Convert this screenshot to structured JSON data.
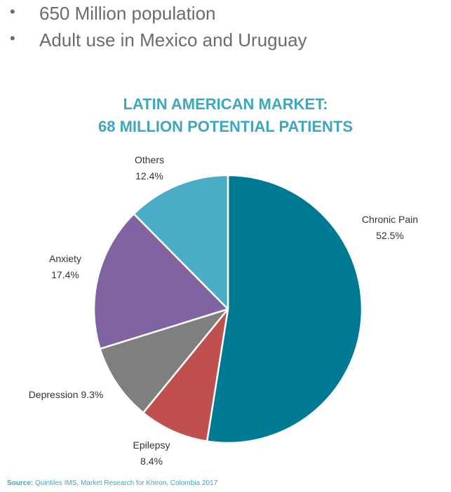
{
  "bullets": {
    "symbol": "•",
    "items": [
      "650 Million population",
      "Adult use in Mexico and Uruguay"
    ]
  },
  "chart_data": {
    "type": "pie",
    "title_lines": [
      "LATIN AMERICAN MARKET:",
      "68 MILLION POTENTIAL PATIENTS"
    ],
    "slices": [
      {
        "name": "Chronic Pain",
        "value": 52.5,
        "value_label": "52.5%",
        "color": "#007a93"
      },
      {
        "name": "Epilepsy",
        "value": 8.4,
        "value_label": "8.4%",
        "color": "#c0504d"
      },
      {
        "name": "Depression",
        "value": 9.3,
        "value_label": "9.3%",
        "color": "#7f7f7f"
      },
      {
        "name": "Anxiety",
        "value": 17.4,
        "value_label": "17.4%",
        "color": "#8064a2"
      },
      {
        "name": "Others",
        "value": 12.4,
        "value_label": "12.4%",
        "color": "#4bacc6"
      }
    ],
    "legend": "none"
  },
  "source": {
    "label": "Source:",
    "text": "Quintiles IMS, Market Research for Khiron, Colombia 2017"
  }
}
